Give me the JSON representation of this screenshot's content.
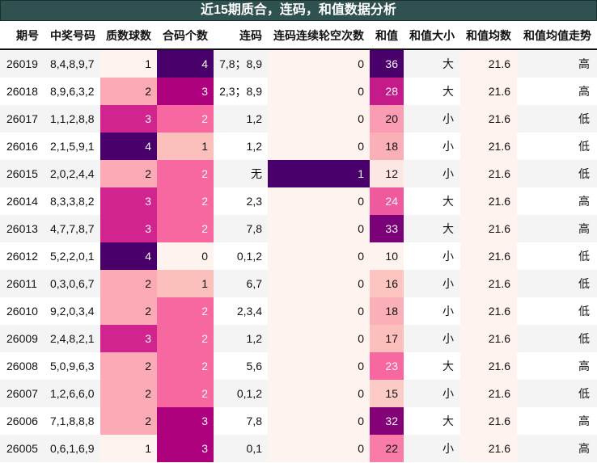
{
  "title": "近15期质合，连码，和值数据分析",
  "headers": [
    "期号",
    "中奖号码",
    "质数球数",
    "合码个数",
    "连码",
    "连码连续轮空次数",
    "和值",
    "和值大小",
    "和值均数",
    "和值均值走势"
  ],
  "rows": [
    {
      "issue": "26019",
      "numbers": "8,4,8,9,7",
      "primes": "1",
      "composites": "4",
      "consecutive": "7,8；8,9",
      "consec_miss": "0",
      "sum": "36",
      "size": "大",
      "avg": "21.6",
      "trend": "高",
      "primes_bg": "#fff3f0",
      "composites_bg": "#49006a",
      "miss_bg": "#fff3f0",
      "sum_bg": "#49006a"
    },
    {
      "issue": "26018",
      "numbers": "8,9,6,3,2",
      "primes": "2",
      "composites": "3",
      "consecutive": "2,3；8,9",
      "consec_miss": "0",
      "sum": "28",
      "size": "大",
      "avg": "21.6",
      "trend": "高",
      "primes_bg": "#fbaab6",
      "composites_bg": "#ae017e",
      "miss_bg": "#fff3f0",
      "sum_bg": "#c51b8a"
    },
    {
      "issue": "26017",
      "numbers": "1,1,2,8,8",
      "primes": "3",
      "composites": "2",
      "consecutive": "1,2",
      "consec_miss": "0",
      "sum": "20",
      "size": "小",
      "avg": "21.6",
      "trend": "低",
      "primes_bg": "#d2248e",
      "composites_bg": "#f768a1",
      "miss_bg": "#fff3f0",
      "sum_bg": "#f99cb4"
    },
    {
      "issue": "26016",
      "numbers": "2,1,5,9,1",
      "primes": "4",
      "composites": "1",
      "consecutive": "1,2",
      "consec_miss": "0",
      "sum": "18",
      "size": "小",
      "avg": "21.6",
      "trend": "低",
      "primes_bg": "#49006a",
      "composites_bg": "#fcc0bc",
      "miss_bg": "#fff3f0",
      "sum_bg": "#fbb0b8"
    },
    {
      "issue": "26015",
      "numbers": "2,0,2,4,4",
      "primes": "2",
      "composites": "2",
      "consecutive": "无",
      "consec_miss": "1",
      "sum": "12",
      "size": "小",
      "avg": "21.6",
      "trend": "低",
      "primes_bg": "#fbaab6",
      "composites_bg": "#f768a1",
      "miss_bg": "#49006a",
      "sum_bg": "#fde7e4"
    },
    {
      "issue": "26014",
      "numbers": "8,3,3,8,2",
      "primes": "3",
      "composites": "2",
      "consecutive": "2,3",
      "consec_miss": "0",
      "sum": "24",
      "size": "大",
      "avg": "21.6",
      "trend": "高",
      "primes_bg": "#d2248e",
      "composites_bg": "#f768a1",
      "miss_bg": "#fff3f0",
      "sum_bg": "#ef5a9f"
    },
    {
      "issue": "26013",
      "numbers": "4,7,7,8,7",
      "primes": "3",
      "composites": "2",
      "consecutive": "7,8",
      "consec_miss": "0",
      "sum": "33",
      "size": "大",
      "avg": "21.6",
      "trend": "高",
      "primes_bg": "#d2248e",
      "composites_bg": "#f768a1",
      "miss_bg": "#fff3f0",
      "sum_bg": "#7a0177"
    },
    {
      "issue": "26012",
      "numbers": "5,2,2,0,1",
      "primes": "4",
      "composites": "0",
      "consecutive": "0,1,2",
      "consec_miss": "0",
      "sum": "10",
      "size": "小",
      "avg": "21.6",
      "trend": "低",
      "primes_bg": "#49006a",
      "composites_bg": "#fff3f0",
      "miss_bg": "#fff3f0",
      "sum_bg": "#fff3f0"
    },
    {
      "issue": "26011",
      "numbers": "0,3,0,6,7",
      "primes": "2",
      "composites": "1",
      "consecutive": "6,7",
      "consec_miss": "0",
      "sum": "16",
      "size": "小",
      "avg": "21.6",
      "trend": "低",
      "primes_bg": "#fbaab6",
      "composites_bg": "#fcc0bc",
      "miss_bg": "#fff3f0",
      "sum_bg": "#fcc5c0"
    },
    {
      "issue": "26010",
      "numbers": "9,2,0,3,4",
      "primes": "2",
      "composites": "2",
      "consecutive": "2,3,4",
      "consec_miss": "0",
      "sum": "18",
      "size": "小",
      "avg": "21.6",
      "trend": "低",
      "primes_bg": "#fbaab6",
      "composites_bg": "#f768a1",
      "miss_bg": "#fff3f0",
      "sum_bg": "#fbb0b8"
    },
    {
      "issue": "26009",
      "numbers": "2,4,8,2,1",
      "primes": "3",
      "composites": "2",
      "consecutive": "1,2",
      "consec_miss": "0",
      "sum": "17",
      "size": "小",
      "avg": "21.6",
      "trend": "低",
      "primes_bg": "#d2248e",
      "composites_bg": "#f768a1",
      "miss_bg": "#fff3f0",
      "sum_bg": "#fcbfbc"
    },
    {
      "issue": "26008",
      "numbers": "5,0,9,6,3",
      "primes": "2",
      "composites": "2",
      "consecutive": "5,6",
      "consec_miss": "0",
      "sum": "23",
      "size": "大",
      "avg": "21.6",
      "trend": "高",
      "primes_bg": "#fbaab6",
      "composites_bg": "#f768a1",
      "miss_bg": "#fff3f0",
      "sum_bg": "#f768a1"
    },
    {
      "issue": "26007",
      "numbers": "1,2,6,6,0",
      "primes": "2",
      "composites": "2",
      "consecutive": "0,1,2",
      "consec_miss": "0",
      "sum": "15",
      "size": "小",
      "avg": "21.6",
      "trend": "低",
      "primes_bg": "#fbaab6",
      "composites_bg": "#f768a1",
      "miss_bg": "#fff3f0",
      "sum_bg": "#fccbc5"
    },
    {
      "issue": "26006",
      "numbers": "7,1,8,8,8",
      "primes": "2",
      "composites": "3",
      "consecutive": "7,8",
      "consec_miss": "0",
      "sum": "32",
      "size": "大",
      "avg": "21.6",
      "trend": "高",
      "primes_bg": "#fbaab6",
      "composites_bg": "#ae017e",
      "miss_bg": "#fff3f0",
      "sum_bg": "#850178"
    },
    {
      "issue": "26005",
      "numbers": "0,6,1,6,9",
      "primes": "1",
      "composites": "3",
      "consecutive": "0,1",
      "consec_miss": "0",
      "sum": "22",
      "size": "小",
      "avg": "21.6",
      "trend": "高",
      "primes_bg": "#fff3f0",
      "composites_bg": "#ae017e",
      "miss_bg": "#fff3f0",
      "sum_bg": "#f87ba8"
    }
  ],
  "colors": {
    "title_bg": "#2f5250",
    "row_odd_bg": "#f4f4f4",
    "row_even_bg": "#ffffff",
    "scale_min": "#fff3f0",
    "scale_max": "#49006a"
  }
}
